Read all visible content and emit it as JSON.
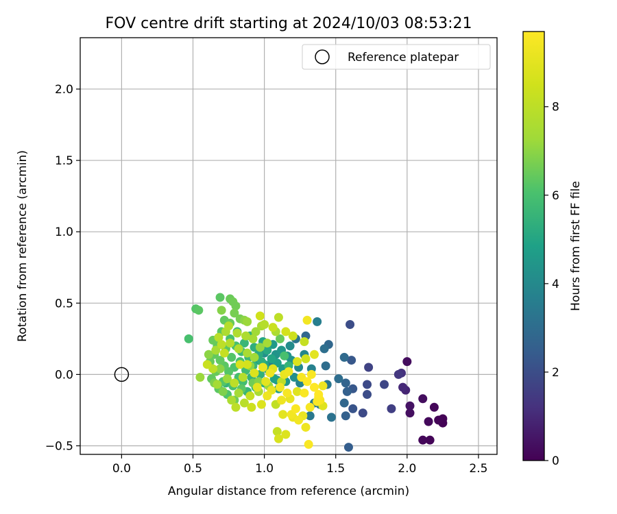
{
  "chart_data": {
    "type": "scatter",
    "title": "FOV centre drift starting at 2024/10/03 08:53:21",
    "xlabel": "Angular distance from reference (arcmin)",
    "ylabel": "Rotation from reference (arcmin)",
    "xlim": [
      -0.29,
      2.63
    ],
    "ylim": [
      -0.56,
      2.36
    ],
    "xticks": [
      "0.0",
      "0.5",
      "1.0",
      "1.5",
      "2.0",
      "2.5"
    ],
    "yticks": [
      "−0.5",
      "0.0",
      "0.5",
      "1.0",
      "1.5",
      "2.0"
    ],
    "grid": true,
    "legend": {
      "position": "top-right",
      "entries": [
        "Reference platepar"
      ]
    },
    "reference": {
      "x": 0.0,
      "y": 0.0
    },
    "colorbar": {
      "label": "Hours from first FF file",
      "colormap": "viridis",
      "range": [
        0,
        9.7
      ],
      "ticks": [
        "0",
        "2",
        "4",
        "6",
        "8"
      ]
    },
    "points": [
      [
        2.25,
        -0.34,
        0.05
      ],
      [
        2.25,
        -0.31,
        0.05
      ],
      [
        2.22,
        -0.32,
        0.1
      ],
      [
        2.19,
        -0.23,
        0.15
      ],
      [
        2.16,
        -0.46,
        0.1
      ],
      [
        2.15,
        -0.33,
        0.2
      ],
      [
        2.11,
        -0.46,
        0.15
      ],
      [
        2.11,
        -0.17,
        0.3
      ],
      [
        2.02,
        -0.27,
        0.35
      ],
      [
        2.02,
        -0.22,
        0.45
      ],
      [
        2.0,
        0.09,
        0.3
      ],
      [
        1.99,
        -0.11,
        0.9
      ],
      [
        1.97,
        -0.09,
        1.0
      ],
      [
        1.96,
        0.01,
        1.2
      ],
      [
        1.94,
        0.0,
        1.4
      ],
      [
        1.89,
        -0.24,
        1.6
      ],
      [
        1.84,
        -0.07,
        1.8
      ],
      [
        1.73,
        0.05,
        1.7
      ],
      [
        1.72,
        -0.07,
        1.9
      ],
      [
        1.72,
        -0.14,
        2.0
      ],
      [
        1.69,
        -0.27,
        1.9
      ],
      [
        1.62,
        -0.24,
        2.2
      ],
      [
        1.62,
        -0.1,
        2.3
      ],
      [
        1.6,
        0.35,
        2.0
      ],
      [
        1.61,
        0.1,
        2.3
      ],
      [
        1.59,
        -0.51,
        2.5
      ],
      [
        1.58,
        -0.12,
        2.6
      ],
      [
        1.57,
        -0.06,
        2.7
      ],
      [
        1.56,
        -0.2,
        2.8
      ],
      [
        1.56,
        0.12,
        2.9
      ],
      [
        1.57,
        -0.29,
        2.6
      ],
      [
        1.52,
        -0.03,
        3.0
      ],
      [
        1.47,
        -0.3,
        3.2
      ],
      [
        1.45,
        0.21,
        2.8
      ],
      [
        1.43,
        0.06,
        3.0
      ],
      [
        1.42,
        0.18,
        3.1
      ],
      [
        1.44,
        -0.07,
        3.3
      ],
      [
        1.39,
        -0.21,
        3.4
      ],
      [
        1.37,
        0.37,
        3.6
      ],
      [
        1.35,
        -0.2,
        3.5
      ],
      [
        1.33,
        0.04,
        3.7
      ],
      [
        1.32,
        -0.29,
        3.4
      ],
      [
        1.29,
        0.27,
        2.8
      ],
      [
        1.28,
        0.14,
        3.9
      ],
      [
        1.25,
        -0.06,
        3.8
      ],
      [
        1.24,
        0.05,
        4.0
      ],
      [
        1.22,
        0.25,
        3.3
      ],
      [
        1.21,
        -0.02,
        4.2
      ],
      [
        1.19,
        0.1,
        4.3
      ],
      [
        1.18,
        0.2,
        4.1
      ],
      [
        1.16,
        0.13,
        4.4
      ],
      [
        1.15,
        -0.05,
        4.5
      ],
      [
        1.13,
        0.04,
        4.6
      ],
      [
        1.12,
        0.17,
        4.5
      ],
      [
        1.1,
        -0.1,
        4.7
      ],
      [
        1.09,
        0.08,
        4.8
      ],
      [
        1.08,
        0.14,
        4.4
      ],
      [
        1.07,
        -0.03,
        4.9
      ],
      [
        1.06,
        0.21,
        4.6
      ],
      [
        1.05,
        0.11,
        5.0
      ],
      [
        1.03,
        0.03,
        5.0
      ],
      [
        1.02,
        0.17,
        5.1
      ],
      [
        1.0,
        -0.06,
        5.2
      ],
      [
        0.99,
        0.23,
        5.0
      ],
      [
        0.98,
        0.09,
        5.3
      ],
      [
        0.97,
        0.0,
        5.4
      ],
      [
        0.96,
        0.14,
        5.2
      ],
      [
        0.94,
        -0.09,
        5.5
      ],
      [
        0.93,
        0.19,
        5.3
      ],
      [
        0.92,
        0.06,
        5.6
      ],
      [
        0.91,
        -0.02,
        5.5
      ],
      [
        0.9,
        0.27,
        5.4
      ],
      [
        0.89,
        0.12,
        5.7
      ],
      [
        0.88,
        -0.12,
        5.6
      ],
      [
        0.87,
        0.03,
        5.8
      ],
      [
        0.86,
        0.22,
        5.6
      ],
      [
        0.85,
        -0.05,
        5.9
      ],
      [
        0.84,
        0.16,
        5.8
      ],
      [
        0.83,
        0.09,
        6.0
      ],
      [
        0.82,
        -0.02,
        5.9
      ],
      [
        0.81,
        0.3,
        5.7
      ],
      [
        0.8,
        0.2,
        6.0
      ],
      [
        0.79,
        0.05,
        6.1
      ],
      [
        0.78,
        -0.08,
        6.0
      ],
      [
        0.77,
        0.12,
        6.2
      ],
      [
        0.76,
        0.25,
        6.0
      ],
      [
        0.75,
        0.02,
        6.2
      ],
      [
        0.74,
        -0.14,
        6.1
      ],
      [
        0.73,
        0.18,
        6.3
      ],
      [
        0.72,
        0.06,
        6.3
      ],
      [
        0.71,
        -0.05,
        6.2
      ],
      [
        0.7,
        0.3,
        6.3
      ],
      [
        0.69,
        0.1,
        6.4
      ],
      [
        0.68,
        -0.1,
        6.3
      ],
      [
        0.67,
        0.2,
        6.4
      ],
      [
        0.66,
        0.02,
        6.5
      ],
      [
        0.65,
        0.14,
        6.4
      ],
      [
        0.64,
        0.24,
        6.5
      ],
      [
        0.63,
        -0.03,
        6.4
      ],
      [
        0.62,
        0.09,
        6.5
      ],
      [
        0.69,
        0.54,
        6.3
      ],
      [
        0.52,
        0.46,
        6.2
      ],
      [
        0.54,
        0.45,
        6.3
      ],
      [
        0.47,
        0.25,
        6.0
      ],
      [
        0.76,
        0.53,
        6.5
      ],
      [
        0.78,
        0.51,
        6.6
      ],
      [
        0.8,
        0.48,
        6.6
      ],
      [
        0.79,
        0.43,
        6.7
      ],
      [
        0.7,
        0.45,
        6.9
      ],
      [
        0.72,
        0.38,
        6.4
      ],
      [
        0.76,
        0.36,
        6.5
      ],
      [
        0.83,
        0.39,
        6.7
      ],
      [
        0.86,
        0.38,
        7.0
      ],
      [
        0.88,
        0.37,
        7.2
      ],
      [
        0.94,
        0.3,
        7.3
      ],
      [
        0.98,
        0.34,
        7.5
      ],
      [
        0.92,
        0.25,
        7.4
      ],
      [
        0.87,
        0.27,
        7.6
      ],
      [
        0.81,
        0.29,
        7.7
      ],
      [
        0.75,
        0.34,
        7.8
      ],
      [
        0.73,
        0.3,
        7.6
      ],
      [
        0.68,
        0.26,
        7.9
      ],
      [
        0.7,
        0.21,
        8.0
      ],
      [
        0.76,
        0.22,
        7.8
      ],
      [
        0.82,
        0.18,
        7.7
      ],
      [
        0.88,
        0.15,
        7.5
      ],
      [
        0.93,
        0.12,
        7.3
      ],
      [
        0.97,
        0.19,
        7.1
      ],
      [
        1.02,
        0.22,
        7.4
      ],
      [
        1.08,
        0.3,
        7.6
      ],
      [
        1.06,
        0.33,
        8.3
      ],
      [
        1.1,
        0.4,
        8.0
      ],
      [
        1.15,
        0.3,
        8.6
      ],
      [
        1.2,
        0.27,
        8.4
      ],
      [
        1.28,
        0.23,
        8.2
      ],
      [
        1.29,
        0.11,
        8.5
      ],
      [
        1.3,
        0.38,
        9.4
      ],
      [
        1.35,
        0.14,
        9.0
      ],
      [
        0.55,
        -0.02,
        7.2
      ],
      [
        0.6,
        0.07,
        8.3
      ],
      [
        0.64,
        0.04,
        8.0
      ],
      [
        0.67,
        -0.07,
        7.4
      ],
      [
        0.71,
        -0.12,
        6.8
      ],
      [
        0.74,
        -0.03,
        7.2
      ],
      [
        0.77,
        -0.18,
        7.6
      ],
      [
        0.79,
        -0.06,
        8.0
      ],
      [
        0.8,
        -0.23,
        8.0
      ],
      [
        0.82,
        -0.13,
        7.4
      ],
      [
        0.85,
        -0.02,
        7.8
      ],
      [
        0.86,
        -0.2,
        7.9
      ],
      [
        0.88,
        0.07,
        8.6
      ],
      [
        0.9,
        -0.15,
        8.2
      ],
      [
        0.91,
        -0.23,
        8.4
      ],
      [
        0.93,
        0.01,
        8.8
      ],
      [
        0.95,
        -0.09,
        9.0
      ],
      [
        0.96,
        -0.12,
        7.5
      ],
      [
        0.98,
        -0.21,
        8.8
      ],
      [
        0.99,
        0.05,
        9.2
      ],
      [
        1.01,
        -0.05,
        9.0
      ],
      [
        1.02,
        -0.15,
        9.3
      ],
      [
        1.04,
        0.01,
        9.3
      ],
      [
        1.05,
        -0.11,
        9.1
      ],
      [
        1.06,
        0.04,
        8.9
      ],
      [
        1.08,
        -0.21,
        8.1
      ],
      [
        1.09,
        -0.4,
        8.2
      ],
      [
        1.1,
        -0.45,
        8.7
      ],
      [
        1.11,
        -0.09,
        9.4
      ],
      [
        1.12,
        -0.18,
        9.3
      ],
      [
        1.13,
        -0.28,
        9.0
      ],
      [
        1.14,
        0.0,
        9.2
      ],
      [
        1.15,
        -0.42,
        8.8
      ],
      [
        1.16,
        -0.13,
        9.5
      ],
      [
        1.17,
        0.02,
        9.3
      ],
      [
        1.18,
        -0.17,
        9.1
      ],
      [
        1.19,
        -0.28,
        9.4
      ],
      [
        1.2,
        -0.3,
        9.2
      ],
      [
        1.22,
        -0.24,
        9.6
      ],
      [
        1.23,
        -0.12,
        8.9
      ],
      [
        1.24,
        -0.32,
        9.4
      ],
      [
        1.26,
        -0.02,
        9.5
      ],
      [
        1.27,
        -0.29,
        9.2
      ],
      [
        1.28,
        -0.13,
        9.6
      ],
      [
        1.29,
        -0.37,
        9.3
      ],
      [
        1.3,
        -0.05,
        9.7
      ],
      [
        1.31,
        -0.49,
        9.6
      ],
      [
        1.32,
        -0.23,
        9.5
      ],
      [
        1.33,
        0.0,
        9.6
      ],
      [
        1.35,
        -0.09,
        9.7
      ],
      [
        1.37,
        -0.19,
        9.6
      ],
      [
        1.38,
        -0.14,
        9.7
      ],
      [
        1.38,
        -0.16,
        9.6
      ],
      [
        1.39,
        -0.18,
        9.5
      ],
      [
        1.41,
        -0.22,
        8.9
      ],
      [
        1.41,
        -0.08,
        9.3
      ],
      [
        1.0,
        0.35,
        7.8
      ],
      [
        0.97,
        0.41,
        8.5
      ],
      [
        1.11,
        0.25,
        6.5
      ],
      [
        1.14,
        0.13,
        6.0
      ],
      [
        1.17,
        0.06,
        5.5
      ],
      [
        1.0,
        0.07,
        5.0
      ],
      [
        0.96,
        -0.05,
        6.9
      ],
      [
        0.92,
        -0.06,
        6.6
      ],
      [
        0.84,
        -0.1,
        6.3
      ],
      [
        0.79,
        -0.18,
        6.6
      ],
      [
        0.73,
        -0.06,
        5.5
      ],
      [
        0.69,
        0.04,
        7.0
      ],
      [
        0.65,
        -0.06,
        6.8
      ],
      [
        0.61,
        0.14,
        7.0
      ],
      [
        0.66,
        0.17,
        7.5
      ],
      [
        0.72,
        0.15,
        8.2
      ],
      [
        0.83,
        0.07,
        8.7
      ],
      [
        0.9,
        0.06,
        7.0
      ],
      [
        1.03,
        -0.08,
        7.2
      ],
      [
        1.12,
        -0.05,
        8.0
      ],
      [
        1.23,
        0.09,
        8.8
      ],
      [
        1.13,
        0.04,
        4.0
      ],
      [
        1.04,
        0.07,
        3.6
      ],
      [
        1.0,
        0.15,
        4.2
      ],
      [
        0.95,
        0.1,
        4.8
      ],
      [
        1.09,
        -0.04,
        4.3
      ]
    ]
  }
}
